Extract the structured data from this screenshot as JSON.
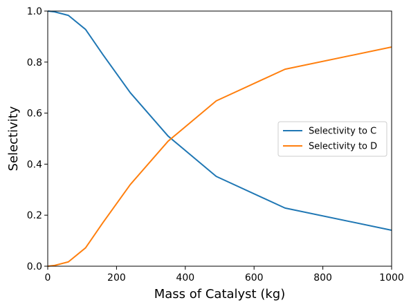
{
  "chart_data": {
    "type": "line",
    "title": "",
    "xlabel": "Mass of Catalyst (kg)",
    "ylabel": "Selectivity",
    "xlim": [
      0,
      1000
    ],
    "ylim": [
      0,
      1.0
    ],
    "x_ticks": [
      0,
      200,
      400,
      600,
      800,
      1000
    ],
    "x_tick_labels": [
      "0",
      "200",
      "400",
      "600",
      "800",
      "1000"
    ],
    "y_ticks": [
      0,
      0.2,
      0.4,
      0.6,
      0.8,
      1.0
    ],
    "y_tick_labels": [
      "0.0",
      "0.2",
      "0.4",
      "0.6",
      "0.8",
      "1.0"
    ],
    "grid": false,
    "legend_position": "center-right",
    "series": [
      {
        "name": "Selectivity to C",
        "color": "#1f77b4",
        "x": [
          0,
          20,
          60,
          110,
          160,
          240,
          350,
          490,
          690,
          1000
        ],
        "y": [
          1.0,
          0.997,
          0.983,
          0.928,
          0.83,
          0.68,
          0.51,
          0.352,
          0.228,
          0.141
        ]
      },
      {
        "name": "Selectivity to D",
        "color": "#ff7f0e",
        "x": [
          0,
          20,
          60,
          110,
          160,
          240,
          350,
          490,
          690,
          1000
        ],
        "y": [
          0.0,
          0.003,
          0.017,
          0.072,
          0.17,
          0.32,
          0.49,
          0.648,
          0.772,
          0.859
        ]
      }
    ]
  }
}
